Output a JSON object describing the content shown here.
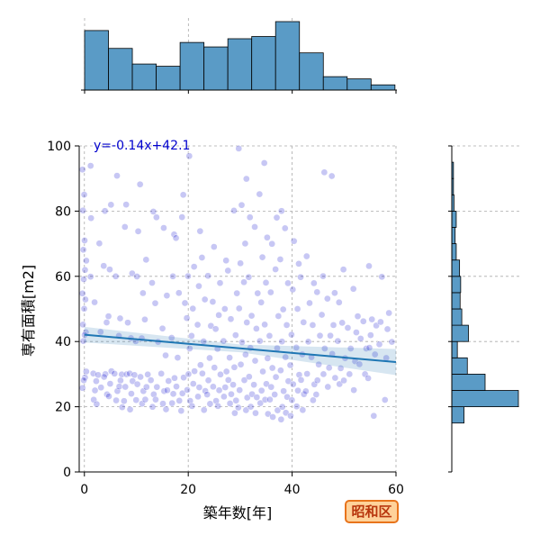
{
  "chart_data": {
    "type": "scatter",
    "xlabel": "築年数[年]",
    "ylabel": "専有面積[m2]",
    "xlim": [
      -1,
      60
    ],
    "ylim": [
      0,
      100
    ],
    "x_ticks": [
      "0",
      "20",
      "40",
      "60"
    ],
    "y_ticks": [
      "0",
      "20",
      "40",
      "60",
      "80",
      "100"
    ],
    "grid": true,
    "regression": {
      "equation": "y=-0.14x+42.1",
      "slope": -0.14,
      "intercept": 42.1,
      "color": "#1f77b4"
    },
    "point_color": "#0000cd",
    "bar_color": "#5a9bc6",
    "points": [
      [
        0,
        93
      ],
      [
        1,
        94
      ],
      [
        0,
        85
      ],
      [
        0,
        80
      ],
      [
        1,
        78
      ],
      [
        0,
        71
      ],
      [
        0,
        68
      ],
      [
        0,
        65
      ],
      [
        0,
        62
      ],
      [
        0,
        59
      ],
      [
        0,
        55
      ],
      [
        0,
        53
      ],
      [
        0,
        50
      ],
      [
        0,
        45
      ],
      [
        0,
        43
      ],
      [
        0,
        42
      ],
      [
        0,
        40
      ],
      [
        0,
        31
      ],
      [
        0,
        29
      ],
      [
        0,
        28
      ],
      [
        0,
        26
      ],
      [
        1,
        60
      ],
      [
        2,
        52
      ],
      [
        2,
        30
      ],
      [
        2,
        28
      ],
      [
        2,
        25
      ],
      [
        2,
        22
      ],
      [
        2,
        21
      ],
      [
        3,
        43
      ],
      [
        3,
        70
      ],
      [
        3,
        30
      ],
      [
        3,
        26
      ],
      [
        4,
        80
      ],
      [
        4,
        63
      ],
      [
        4,
        46
      ],
      [
        4,
        30
      ],
      [
        4,
        29
      ],
      [
        4,
        24
      ],
      [
        5,
        82
      ],
      [
        5,
        62
      ],
      [
        5,
        48
      ],
      [
        5,
        31
      ],
      [
        5,
        27
      ],
      [
        5,
        23
      ],
      [
        6,
        91
      ],
      [
        6,
        60
      ],
      [
        6,
        30
      ],
      [
        6,
        25
      ],
      [
        6,
        22
      ],
      [
        7,
        47
      ],
      [
        7,
        42
      ],
      [
        7,
        30
      ],
      [
        7,
        28
      ],
      [
        7,
        26
      ],
      [
        7,
        20
      ],
      [
        8,
        82
      ],
      [
        8,
        75
      ],
      [
        8,
        46
      ],
      [
        8,
        30
      ],
      [
        8,
        26
      ],
      [
        8,
        22
      ],
      [
        9,
        61
      ],
      [
        9,
        41
      ],
      [
        9,
        30
      ],
      [
        9,
        28
      ],
      [
        9,
        24
      ],
      [
        9,
        19
      ],
      [
        10,
        74
      ],
      [
        10,
        60
      ],
      [
        10,
        40
      ],
      [
        10,
        30
      ],
      [
        10,
        27
      ],
      [
        10,
        22
      ],
      [
        11,
        88
      ],
      [
        11,
        55
      ],
      [
        11,
        41
      ],
      [
        11,
        29
      ],
      [
        11,
        25
      ],
      [
        11,
        21
      ],
      [
        12,
        65
      ],
      [
        12,
        47
      ],
      [
        12,
        30
      ],
      [
        12,
        26
      ],
      [
        12,
        22
      ],
      [
        13,
        80
      ],
      [
        13,
        58
      ],
      [
        13,
        28
      ],
      [
        13,
        24
      ],
      [
        13,
        20
      ],
      [
        14,
        78
      ],
      [
        14,
        52
      ],
      [
        14,
        40
      ],
      [
        14,
        26
      ],
      [
        14,
        22
      ],
      [
        15,
        75
      ],
      [
        15,
        44
      ],
      [
        15,
        30
      ],
      [
        15,
        25
      ],
      [
        15,
        21
      ],
      [
        16,
        54
      ],
      [
        16,
        36
      ],
      [
        16,
        28
      ],
      [
        16,
        25
      ],
      [
        16,
        19
      ],
      [
        17,
        73
      ],
      [
        17,
        60
      ],
      [
        17,
        41
      ],
      [
        17,
        29
      ],
      [
        17,
        24
      ],
      [
        17,
        21
      ],
      [
        18,
        72
      ],
      [
        18,
        55
      ],
      [
        18,
        35
      ],
      [
        18,
        26
      ],
      [
        18,
        22
      ],
      [
        19,
        85
      ],
      [
        19,
        78
      ],
      [
        19,
        52
      ],
      [
        19,
        29
      ],
      [
        19,
        24
      ],
      [
        19,
        19
      ],
      [
        20,
        97
      ],
      [
        20,
        60
      ],
      [
        20,
        47
      ],
      [
        20,
        38
      ],
      [
        20,
        30
      ],
      [
        20,
        25
      ],
      [
        20,
        22
      ],
      [
        21,
        63
      ],
      [
        21,
        50
      ],
      [
        21,
        42
      ],
      [
        21,
        31
      ],
      [
        21,
        27
      ],
      [
        21,
        20
      ],
      [
        22,
        74
      ],
      [
        22,
        57
      ],
      [
        22,
        45
      ],
      [
        22,
        33
      ],
      [
        22,
        26
      ],
      [
        22,
        23
      ],
      [
        23,
        66
      ],
      [
        23,
        53
      ],
      [
        23,
        40
      ],
      [
        23,
        30
      ],
      [
        23,
        25
      ],
      [
        23,
        19
      ],
      [
        24,
        60
      ],
      [
        24,
        45
      ],
      [
        24,
        35
      ],
      [
        24,
        28
      ],
      [
        24,
        24
      ],
      [
        24,
        21
      ],
      [
        25,
        69
      ],
      [
        25,
        52
      ],
      [
        25,
        44
      ],
      [
        25,
        32
      ],
      [
        25,
        26
      ],
      [
        25,
        22
      ],
      [
        26,
        58
      ],
      [
        26,
        48
      ],
      [
        26,
        38
      ],
      [
        26,
        30
      ],
      [
        26,
        25
      ],
      [
        26,
        20
      ],
      [
        27,
        65
      ],
      [
        27,
        50
      ],
      [
        27,
        40
      ],
      [
        27,
        31
      ],
      [
        27,
        26
      ],
      [
        27,
        23
      ],
      [
        28,
        62
      ],
      [
        28,
        47
      ],
      [
        28,
        35
      ],
      [
        28,
        28
      ],
      [
        28,
        24
      ],
      [
        28,
        21
      ],
      [
        29,
        80
      ],
      [
        29,
        55
      ],
      [
        29,
        42
      ],
      [
        29,
        32
      ],
      [
        29,
        27
      ],
      [
        29,
        22
      ],
      [
        29,
        18
      ],
      [
        30,
        99
      ],
      [
        30,
        82
      ],
      [
        30,
        64
      ],
      [
        30,
        50
      ],
      [
        30,
        40
      ],
      [
        30,
        33
      ],
      [
        30,
        25
      ],
      [
        30,
        20
      ],
      [
        31,
        90
      ],
      [
        31,
        70
      ],
      [
        31,
        58
      ],
      [
        31,
        46
      ],
      [
        31,
        36
      ],
      [
        31,
        28
      ],
      [
        31,
        23
      ],
      [
        31,
        19
      ],
      [
        32,
        78
      ],
      [
        32,
        60
      ],
      [
        32,
        48
      ],
      [
        32,
        38
      ],
      [
        32,
        29
      ],
      [
        32,
        24
      ],
      [
        32,
        20
      ],
      [
        33,
        75
      ],
      [
        33,
        55
      ],
      [
        33,
        44
      ],
      [
        33,
        34
      ],
      [
        33,
        27
      ],
      [
        33,
        23
      ],
      [
        33,
        18
      ],
      [
        34,
        85
      ],
      [
        34,
        66
      ],
      [
        34,
        52
      ],
      [
        34,
        40
      ],
      [
        34,
        31
      ],
      [
        34,
        25
      ],
      [
        34,
        21
      ],
      [
        35,
        95
      ],
      [
        35,
        72
      ],
      [
        35,
        58
      ],
      [
        35,
        45
      ],
      [
        35,
        35
      ],
      [
        35,
        27
      ],
      [
        35,
        22
      ],
      [
        35,
        18
      ],
      [
        36,
        70
      ],
      [
        36,
        55
      ],
      [
        36,
        42
      ],
      [
        36,
        32
      ],
      [
        36,
        26
      ],
      [
        36,
        22
      ],
      [
        36,
        17
      ],
      [
        37,
        78
      ],
      [
        37,
        62
      ],
      [
        37,
        48
      ],
      [
        37,
        38
      ],
      [
        37,
        29
      ],
      [
        37,
        24
      ],
      [
        37,
        19
      ],
      [
        38,
        80
      ],
      [
        38,
        65
      ],
      [
        38,
        50
      ],
      [
        38,
        40
      ],
      [
        38,
        31
      ],
      [
        38,
        25
      ],
      [
        38,
        20
      ],
      [
        38,
        16
      ],
      [
        39,
        75
      ],
      [
        39,
        58
      ],
      [
        39,
        45
      ],
      [
        39,
        35
      ],
      [
        39,
        28
      ],
      [
        39,
        23
      ],
      [
        39,
        18
      ],
      [
        40,
        71
      ],
      [
        40,
        56
      ],
      [
        40,
        42
      ],
      [
        40,
        33
      ],
      [
        40,
        27
      ],
      [
        40,
        22
      ],
      [
        40,
        17
      ],
      [
        41,
        64
      ],
      [
        41,
        50
      ],
      [
        41,
        38
      ],
      [
        41,
        30
      ],
      [
        41,
        25
      ],
      [
        41,
        20
      ],
      [
        42,
        60
      ],
      [
        42,
        46
      ],
      [
        42,
        36
      ],
      [
        42,
        28
      ],
      [
        42,
        24
      ],
      [
        42,
        19
      ],
      [
        43,
        66
      ],
      [
        43,
        52
      ],
      [
        43,
        40
      ],
      [
        43,
        30
      ],
      [
        43,
        25
      ],
      [
        44,
        58
      ],
      [
        44,
        45
      ],
      [
        44,
        35
      ],
      [
        44,
        27
      ],
      [
        44,
        22
      ],
      [
        45,
        55
      ],
      [
        45,
        42
      ],
      [
        45,
        33
      ],
      [
        45,
        28
      ],
      [
        45,
        24
      ],
      [
        46,
        92
      ],
      [
        46,
        60
      ],
      [
        46,
        48
      ],
      [
        46,
        38
      ],
      [
        46,
        30
      ],
      [
        47,
        53
      ],
      [
        47,
        42
      ],
      [
        47,
        32
      ],
      [
        47,
        26
      ],
      [
        48,
        91
      ],
      [
        48,
        55
      ],
      [
        48,
        45
      ],
      [
        48,
        36
      ],
      [
        48,
        29
      ],
      [
        49,
        52
      ],
      [
        49,
        40
      ],
      [
        49,
        32
      ],
      [
        49,
        27
      ],
      [
        50,
        62
      ],
      [
        50,
        46
      ],
      [
        50,
        35
      ],
      [
        50,
        28
      ],
      [
        51,
        44
      ],
      [
        51,
        38
      ],
      [
        51,
        30
      ],
      [
        52,
        56
      ],
      [
        52,
        43
      ],
      [
        52,
        34
      ],
      [
        52,
        25
      ],
      [
        53,
        48
      ],
      [
        53,
        41
      ],
      [
        53,
        33
      ],
      [
        54,
        46
      ],
      [
        54,
        38
      ],
      [
        54,
        30
      ],
      [
        55,
        63
      ],
      [
        55,
        47
      ],
      [
        55,
        42
      ],
      [
        55,
        38
      ],
      [
        55,
        29
      ],
      [
        56,
        45
      ],
      [
        56,
        36
      ],
      [
        56,
        17
      ],
      [
        57,
        60
      ],
      [
        57,
        46
      ],
      [
        57,
        39
      ],
      [
        58,
        44
      ],
      [
        58,
        35
      ],
      [
        58,
        22
      ],
      [
        59,
        49
      ],
      [
        59,
        40
      ]
    ],
    "top_hist": {
      "bin_edges": [
        0,
        4.6,
        9.2,
        13.8,
        18.4,
        23,
        27.6,
        32.2,
        36.8,
        41.4,
        46,
        50.6,
        55.2,
        59.8
      ],
      "counts": [
        80,
        56,
        35,
        32,
        64,
        58,
        69,
        72,
        92,
        50,
        18,
        15,
        7
      ]
    },
    "right_hist": {
      "bin_edges": [
        15,
        20,
        25,
        30,
        35,
        40,
        45,
        50,
        55,
        60,
        65,
        70,
        75,
        80,
        85,
        90,
        95
      ],
      "counts": [
        22,
        120,
        60,
        28,
        10,
        30,
        18,
        15,
        16,
        14,
        8,
        6,
        8,
        4,
        3,
        3
      ]
    }
  },
  "badge": {
    "label": "昭和区",
    "bg": "#ffd29a",
    "border": "#e8741c",
    "text_color": "#b8360d"
  }
}
